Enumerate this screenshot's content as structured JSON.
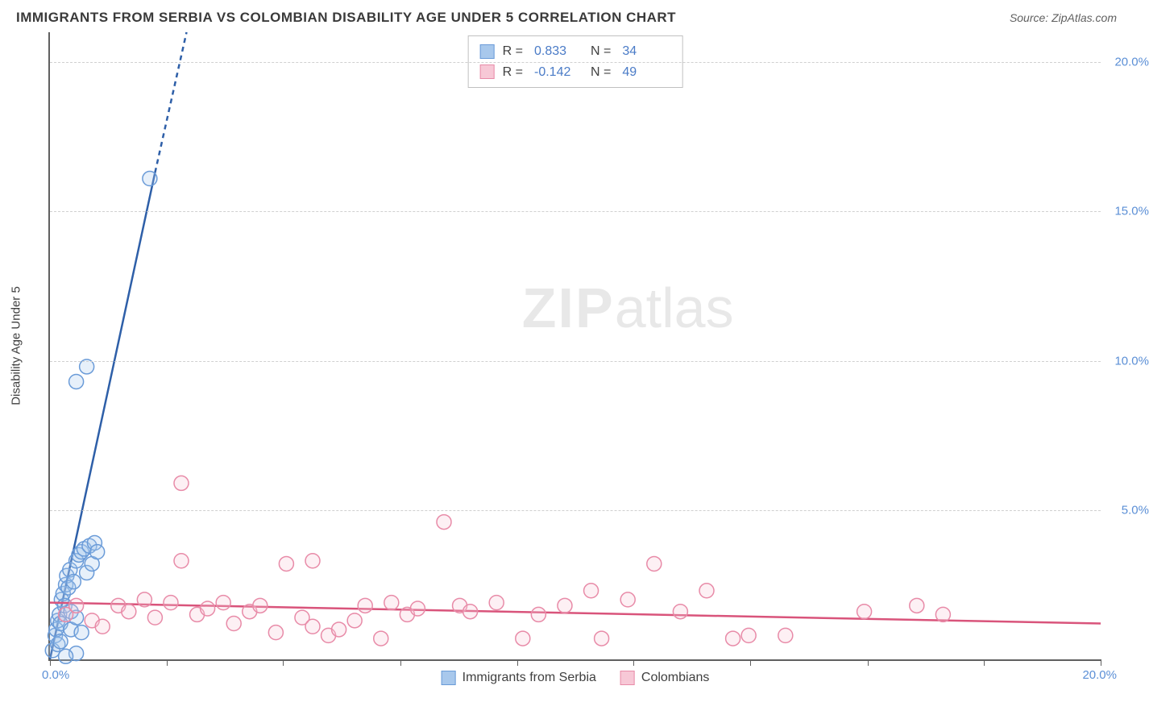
{
  "title": "IMMIGRANTS FROM SERBIA VS COLOMBIAN DISABILITY AGE UNDER 5 CORRELATION CHART",
  "source": "Source: ZipAtlas.com",
  "y_axis_label": "Disability Age Under 5",
  "watermark_bold": "ZIP",
  "watermark_light": "atlas",
  "chart": {
    "type": "scatter",
    "xlim": [
      0,
      20
    ],
    "ylim": [
      0,
      21
    ],
    "x_ticks": [
      0,
      2.22,
      4.44,
      6.67,
      8.89,
      11.11,
      13.33,
      15.56,
      17.78,
      20
    ],
    "x_tick_labels_start": "0.0%",
    "x_tick_labels_end": "20.0%",
    "y_grid": [
      5,
      10,
      15,
      20
    ],
    "y_tick_labels": [
      "5.0%",
      "10.0%",
      "15.0%",
      "20.0%"
    ],
    "background_color": "#ffffff",
    "grid_color": "#d0d0d0",
    "axis_color": "#606060",
    "tick_label_color": "#5b8fd6",
    "marker_radius": 9,
    "marker_stroke_width": 1.5,
    "marker_fill_opacity": 0.28,
    "trend_line_width": 2.5,
    "series": [
      {
        "name": "Immigrants from Serbia",
        "color_fill": "#a8c8ec",
        "color_stroke": "#6a9bd8",
        "trend_color": "#2e5fa8",
        "R": "0.833",
        "N": "34",
        "trend": {
          "x1": 0,
          "y1": 0,
          "x2": 2.0,
          "y2": 16.3,
          "ext_x2": 2.6,
          "ext_y2": 21
        },
        "points": [
          [
            0.05,
            0.3
          ],
          [
            0.1,
            0.8
          ],
          [
            0.12,
            1.0
          ],
          [
            0.15,
            1.3
          ],
          [
            0.18,
            1.5
          ],
          [
            0.2,
            1.2
          ],
          [
            0.22,
            2.0
          ],
          [
            0.25,
            2.2
          ],
          [
            0.28,
            1.8
          ],
          [
            0.3,
            2.5
          ],
          [
            0.32,
            2.8
          ],
          [
            0.35,
            2.4
          ],
          [
            0.38,
            3.0
          ],
          [
            0.4,
            1.6
          ],
          [
            0.45,
            2.6
          ],
          [
            0.5,
            3.3
          ],
          [
            0.55,
            3.5
          ],
          [
            0.6,
            3.6
          ],
          [
            0.65,
            3.7
          ],
          [
            0.7,
            2.9
          ],
          [
            0.75,
            3.8
          ],
          [
            0.8,
            3.2
          ],
          [
            0.85,
            3.9
          ],
          [
            0.9,
            3.6
          ],
          [
            0.5,
            0.2
          ],
          [
            0.3,
            0.1
          ],
          [
            0.15,
            0.5
          ],
          [
            0.2,
            0.6
          ],
          [
            0.4,
            1.0
          ],
          [
            0.5,
            1.4
          ],
          [
            0.5,
            9.3
          ],
          [
            0.7,
            9.8
          ],
          [
            1.9,
            16.1
          ],
          [
            0.6,
            0.9
          ]
        ]
      },
      {
        "name": "Colombians",
        "color_fill": "#f7c8d6",
        "color_stroke": "#e88ba8",
        "trend_color": "#d9547b",
        "R": "-0.142",
        "N": "49",
        "trend": {
          "x1": 0,
          "y1": 1.9,
          "x2": 20,
          "y2": 1.2
        },
        "points": [
          [
            0.3,
            1.5
          ],
          [
            0.5,
            1.8
          ],
          [
            0.8,
            1.3
          ],
          [
            1.0,
            1.1
          ],
          [
            1.3,
            1.8
          ],
          [
            1.5,
            1.6
          ],
          [
            1.8,
            2.0
          ],
          [
            2.0,
            1.4
          ],
          [
            2.3,
            1.9
          ],
          [
            2.5,
            3.3
          ],
          [
            2.8,
            1.5
          ],
          [
            3.0,
            1.7
          ],
          [
            2.5,
            5.9
          ],
          [
            3.3,
            1.9
          ],
          [
            3.5,
            1.2
          ],
          [
            3.8,
            1.6
          ],
          [
            4.0,
            1.8
          ],
          [
            4.3,
            0.9
          ],
          [
            4.5,
            3.2
          ],
          [
            4.8,
            1.4
          ],
          [
            5.0,
            1.1
          ],
          [
            5.3,
            0.8
          ],
          [
            5.5,
            1.0
          ],
          [
            5.0,
            3.3
          ],
          [
            5.8,
            1.3
          ],
          [
            6.0,
            1.8
          ],
          [
            6.3,
            0.7
          ],
          [
            6.5,
            1.9
          ],
          [
            6.8,
            1.5
          ],
          [
            7.0,
            1.7
          ],
          [
            7.5,
            4.6
          ],
          [
            7.8,
            1.8
          ],
          [
            8.0,
            1.6
          ],
          [
            8.5,
            1.9
          ],
          [
            9.0,
            0.7
          ],
          [
            9.3,
            1.5
          ],
          [
            9.8,
            1.8
          ],
          [
            10.3,
            2.3
          ],
          [
            10.5,
            0.7
          ],
          [
            11.0,
            2.0
          ],
          [
            11.5,
            3.2
          ],
          [
            12.0,
            1.6
          ],
          [
            12.5,
            2.3
          ],
          [
            13.0,
            0.7
          ],
          [
            13.3,
            0.8
          ],
          [
            14.0,
            0.8
          ],
          [
            15.5,
            1.6
          ],
          [
            16.5,
            1.8
          ],
          [
            17.0,
            1.5
          ]
        ]
      }
    ]
  },
  "legend_bottom": [
    {
      "label": "Immigrants from Serbia",
      "fill": "#a8c8ec",
      "stroke": "#6a9bd8"
    },
    {
      "label": "Colombians",
      "fill": "#f7c8d6",
      "stroke": "#e88ba8"
    }
  ]
}
